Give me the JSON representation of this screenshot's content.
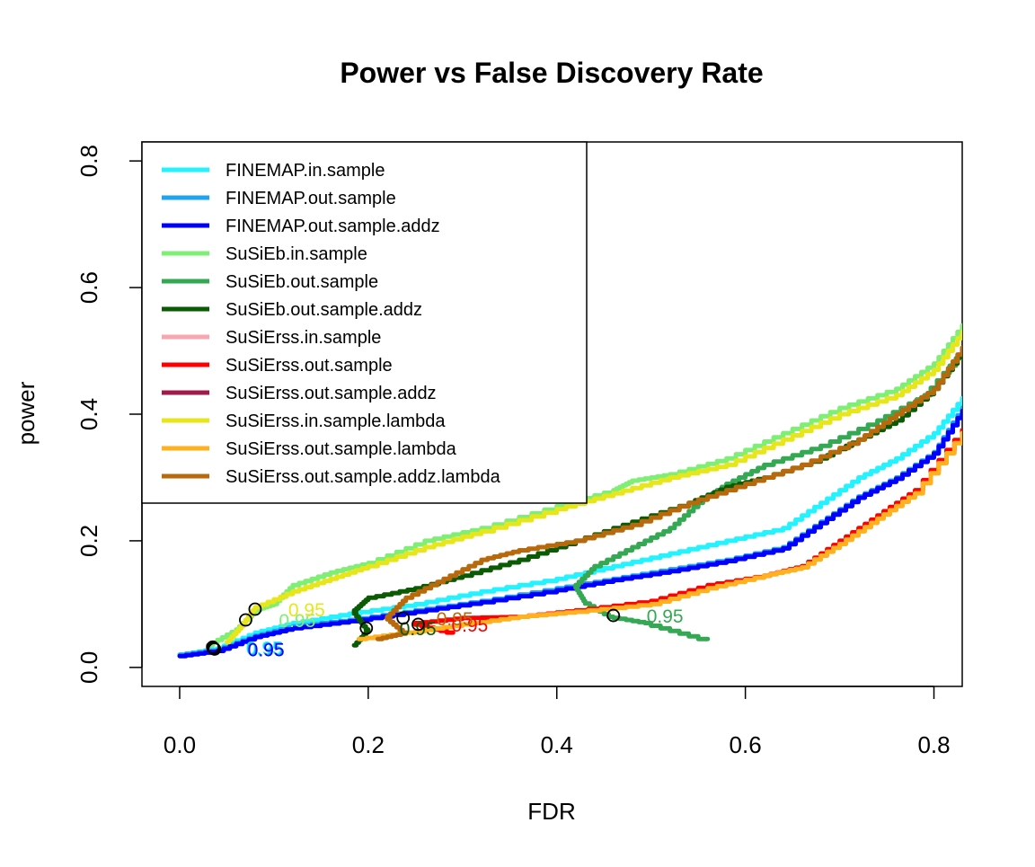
{
  "chart_data": {
    "type": "line",
    "title": "Power vs False Discovery Rate",
    "xlabel": "FDR",
    "ylabel": "power",
    "xlim": [
      -0.04,
      0.83
    ],
    "ylim": [
      -0.03,
      0.83
    ],
    "x_ticks": [
      0.0,
      0.2,
      0.4,
      0.6,
      0.8
    ],
    "x_tick_labels": [
      "0.0",
      "0.2",
      "0.4",
      "0.6",
      "0.8"
    ],
    "y_ticks": [
      0.0,
      0.2,
      0.4,
      0.6,
      0.8
    ],
    "y_tick_labels": [
      "0.0",
      "0.2",
      "0.4",
      "0.6",
      "0.8"
    ],
    "legend_position": "top-left",
    "series": [
      {
        "name": "FINEMAP.in.sample",
        "color": "#22F3FF",
        "points": [
          [
            0.0,
            0.02
          ],
          [
            0.04,
            0.03
          ],
          [
            0.08,
            0.055
          ],
          [
            0.12,
            0.07
          ],
          [
            0.18,
            0.085
          ],
          [
            0.25,
            0.1
          ],
          [
            0.32,
            0.12
          ],
          [
            0.4,
            0.14
          ],
          [
            0.46,
            0.16
          ],
          [
            0.52,
            0.18
          ],
          [
            0.58,
            0.2
          ],
          [
            0.64,
            0.22
          ],
          [
            0.68,
            0.26
          ],
          [
            0.72,
            0.3
          ],
          [
            0.76,
            0.33
          ],
          [
            0.8,
            0.37
          ],
          [
            0.83,
            0.425
          ]
        ],
        "cutoff": {
          "x": 0.035,
          "y": 0.032,
          "label": "0.95"
        }
      },
      {
        "name": "FINEMAP.out.sample",
        "color": "#1FA4F2",
        "points": [
          [
            0.0,
            0.02
          ],
          [
            0.04,
            0.028
          ],
          [
            0.08,
            0.05
          ],
          [
            0.12,
            0.065
          ],
          [
            0.18,
            0.075
          ],
          [
            0.25,
            0.09
          ],
          [
            0.32,
            0.105
          ],
          [
            0.4,
            0.125
          ],
          [
            0.46,
            0.14
          ],
          [
            0.52,
            0.155
          ],
          [
            0.58,
            0.17
          ],
          [
            0.64,
            0.19
          ],
          [
            0.68,
            0.23
          ],
          [
            0.72,
            0.27
          ],
          [
            0.76,
            0.3
          ],
          [
            0.8,
            0.34
          ],
          [
            0.83,
            0.41
          ]
        ],
        "cutoff": {
          "x": 0.036,
          "y": 0.03,
          "label": "0.95"
        }
      },
      {
        "name": "FINEMAP.out.sample.addz",
        "color": "#0000FF",
        "points": [
          [
            0.0,
            0.018
          ],
          [
            0.04,
            0.026
          ],
          [
            0.08,
            0.048
          ],
          [
            0.12,
            0.062
          ],
          [
            0.18,
            0.073
          ],
          [
            0.25,
            0.088
          ],
          [
            0.32,
            0.103
          ],
          [
            0.4,
            0.122
          ],
          [
            0.46,
            0.138
          ],
          [
            0.52,
            0.152
          ],
          [
            0.58,
            0.168
          ],
          [
            0.64,
            0.188
          ],
          [
            0.68,
            0.228
          ],
          [
            0.72,
            0.268
          ],
          [
            0.76,
            0.298
          ],
          [
            0.8,
            0.338
          ],
          [
            0.83,
            0.405
          ]
        ],
        "cutoff": {
          "x": 0.037,
          "y": 0.029,
          "label": "0.95"
        }
      },
      {
        "name": "SuSiEb.in.sample",
        "color": "#7FEE74",
        "points": [
          [
            0.03,
            0.035
          ],
          [
            0.06,
            0.06
          ],
          [
            0.08,
            0.09
          ],
          [
            0.1,
            0.1
          ],
          [
            0.12,
            0.13
          ],
          [
            0.16,
            0.15
          ],
          [
            0.2,
            0.165
          ],
          [
            0.26,
            0.2
          ],
          [
            0.32,
            0.22
          ],
          [
            0.4,
            0.255
          ],
          [
            0.46,
            0.28
          ],
          [
            0.48,
            0.295
          ],
          [
            0.52,
            0.305
          ],
          [
            0.58,
            0.33
          ],
          [
            0.64,
            0.37
          ],
          [
            0.7,
            0.41
          ],
          [
            0.76,
            0.44
          ],
          [
            0.8,
            0.48
          ],
          [
            0.83,
            0.54
          ]
        ],
        "cutoff": {
          "x": 0.07,
          "y": 0.075,
          "label": "0.95"
        }
      },
      {
        "name": "SuSiEb.out.sample",
        "color": "#34A853",
        "points": [
          [
            0.56,
            0.045
          ],
          [
            0.5,
            0.07
          ],
          [
            0.46,
            0.08
          ],
          [
            0.43,
            0.105
          ],
          [
            0.42,
            0.13
          ],
          [
            0.44,
            0.16
          ],
          [
            0.48,
            0.19
          ],
          [
            0.52,
            0.22
          ],
          [
            0.55,
            0.26
          ],
          [
            0.58,
            0.29
          ],
          [
            0.62,
            0.32
          ],
          [
            0.68,
            0.35
          ],
          [
            0.74,
            0.39
          ],
          [
            0.79,
            0.43
          ],
          [
            0.83,
            0.5
          ]
        ],
        "cutoff": {
          "x": 0.46,
          "y": 0.082,
          "label": "0.95"
        }
      },
      {
        "name": "SuSiEb.out.sample.addz",
        "color": "#0B5A04",
        "points": [
          [
            0.185,
            0.035
          ],
          [
            0.2,
            0.06
          ],
          [
            0.185,
            0.09
          ],
          [
            0.2,
            0.11
          ],
          [
            0.25,
            0.125
          ],
          [
            0.3,
            0.145
          ],
          [
            0.36,
            0.17
          ],
          [
            0.42,
            0.2
          ],
          [
            0.48,
            0.23
          ],
          [
            0.54,
            0.26
          ],
          [
            0.58,
            0.285
          ],
          [
            0.62,
            0.3
          ],
          [
            0.68,
            0.33
          ],
          [
            0.72,
            0.36
          ],
          [
            0.76,
            0.39
          ],
          [
            0.8,
            0.44
          ],
          [
            0.83,
            0.5
          ]
        ],
        "cutoff": {
          "x": 0.198,
          "y": 0.062,
          "label": "0.95"
        }
      },
      {
        "name": "SuSiErss.in.sample",
        "color": "#F8A6B0",
        "points": [],
        "cutoff": null
      },
      {
        "name": "SuSiErss.out.sample",
        "color": "#FF0000",
        "points": [
          [
            0.29,
            0.055
          ],
          [
            0.25,
            0.07
          ],
          [
            0.3,
            0.078
          ],
          [
            0.36,
            0.08
          ],
          [
            0.42,
            0.09
          ],
          [
            0.5,
            0.105
          ],
          [
            0.56,
            0.13
          ],
          [
            0.62,
            0.145
          ],
          [
            0.66,
            0.16
          ],
          [
            0.7,
            0.2
          ],
          [
            0.74,
            0.24
          ],
          [
            0.78,
            0.28
          ],
          [
            0.83,
            0.375
          ]
        ],
        "cutoff": {
          "x": 0.253,
          "y": 0.068,
          "label": "0.95"
        }
      },
      {
        "name": "SuSiErss.out.sample.addz",
        "color": "#A11A4A",
        "points": [],
        "cutoff": null
      },
      {
        "name": "SuSiErss.in.sample.lambda",
        "color": "#E6E61A",
        "points": [
          [
            0.05,
            0.04
          ],
          [
            0.065,
            0.065
          ],
          [
            0.08,
            0.095
          ],
          [
            0.12,
            0.12
          ],
          [
            0.16,
            0.14
          ],
          [
            0.2,
            0.16
          ],
          [
            0.26,
            0.19
          ],
          [
            0.32,
            0.215
          ],
          [
            0.4,
            0.25
          ],
          [
            0.46,
            0.275
          ],
          [
            0.52,
            0.3
          ],
          [
            0.58,
            0.32
          ],
          [
            0.64,
            0.36
          ],
          [
            0.7,
            0.4
          ],
          [
            0.76,
            0.43
          ],
          [
            0.8,
            0.47
          ],
          [
            0.83,
            0.53
          ]
        ],
        "cutoff": {
          "x": 0.08,
          "y": 0.092,
          "label": "0.95"
        }
      },
      {
        "name": "SuSiErss.out.sample.lambda",
        "color": "#FFB11F",
        "points": [
          [
            0.19,
            0.045
          ],
          [
            0.24,
            0.055
          ],
          [
            0.3,
            0.068
          ],
          [
            0.36,
            0.08
          ],
          [
            0.42,
            0.088
          ],
          [
            0.5,
            0.1
          ],
          [
            0.56,
            0.125
          ],
          [
            0.62,
            0.145
          ],
          [
            0.66,
            0.158
          ],
          [
            0.7,
            0.195
          ],
          [
            0.74,
            0.235
          ],
          [
            0.78,
            0.275
          ],
          [
            0.83,
            0.37
          ]
        ],
        "cutoff": null
      },
      {
        "name": "SuSiErss.out.sample.addz.lambda",
        "color": "#B8690C",
        "points": [
          [
            0.21,
            0.045
          ],
          [
            0.24,
            0.055
          ],
          [
            0.22,
            0.08
          ],
          [
            0.24,
            0.11
          ],
          [
            0.28,
            0.14
          ],
          [
            0.32,
            0.17
          ],
          [
            0.36,
            0.185
          ],
          [
            0.42,
            0.2
          ],
          [
            0.48,
            0.225
          ],
          [
            0.54,
            0.26
          ],
          [
            0.6,
            0.29
          ],
          [
            0.66,
            0.32
          ],
          [
            0.72,
            0.36
          ],
          [
            0.76,
            0.4
          ],
          [
            0.8,
            0.44
          ],
          [
            0.83,
            0.505
          ]
        ],
        "cutoff": {
          "x": 0.237,
          "y": 0.078,
          "label": "0.95"
        }
      }
    ]
  }
}
